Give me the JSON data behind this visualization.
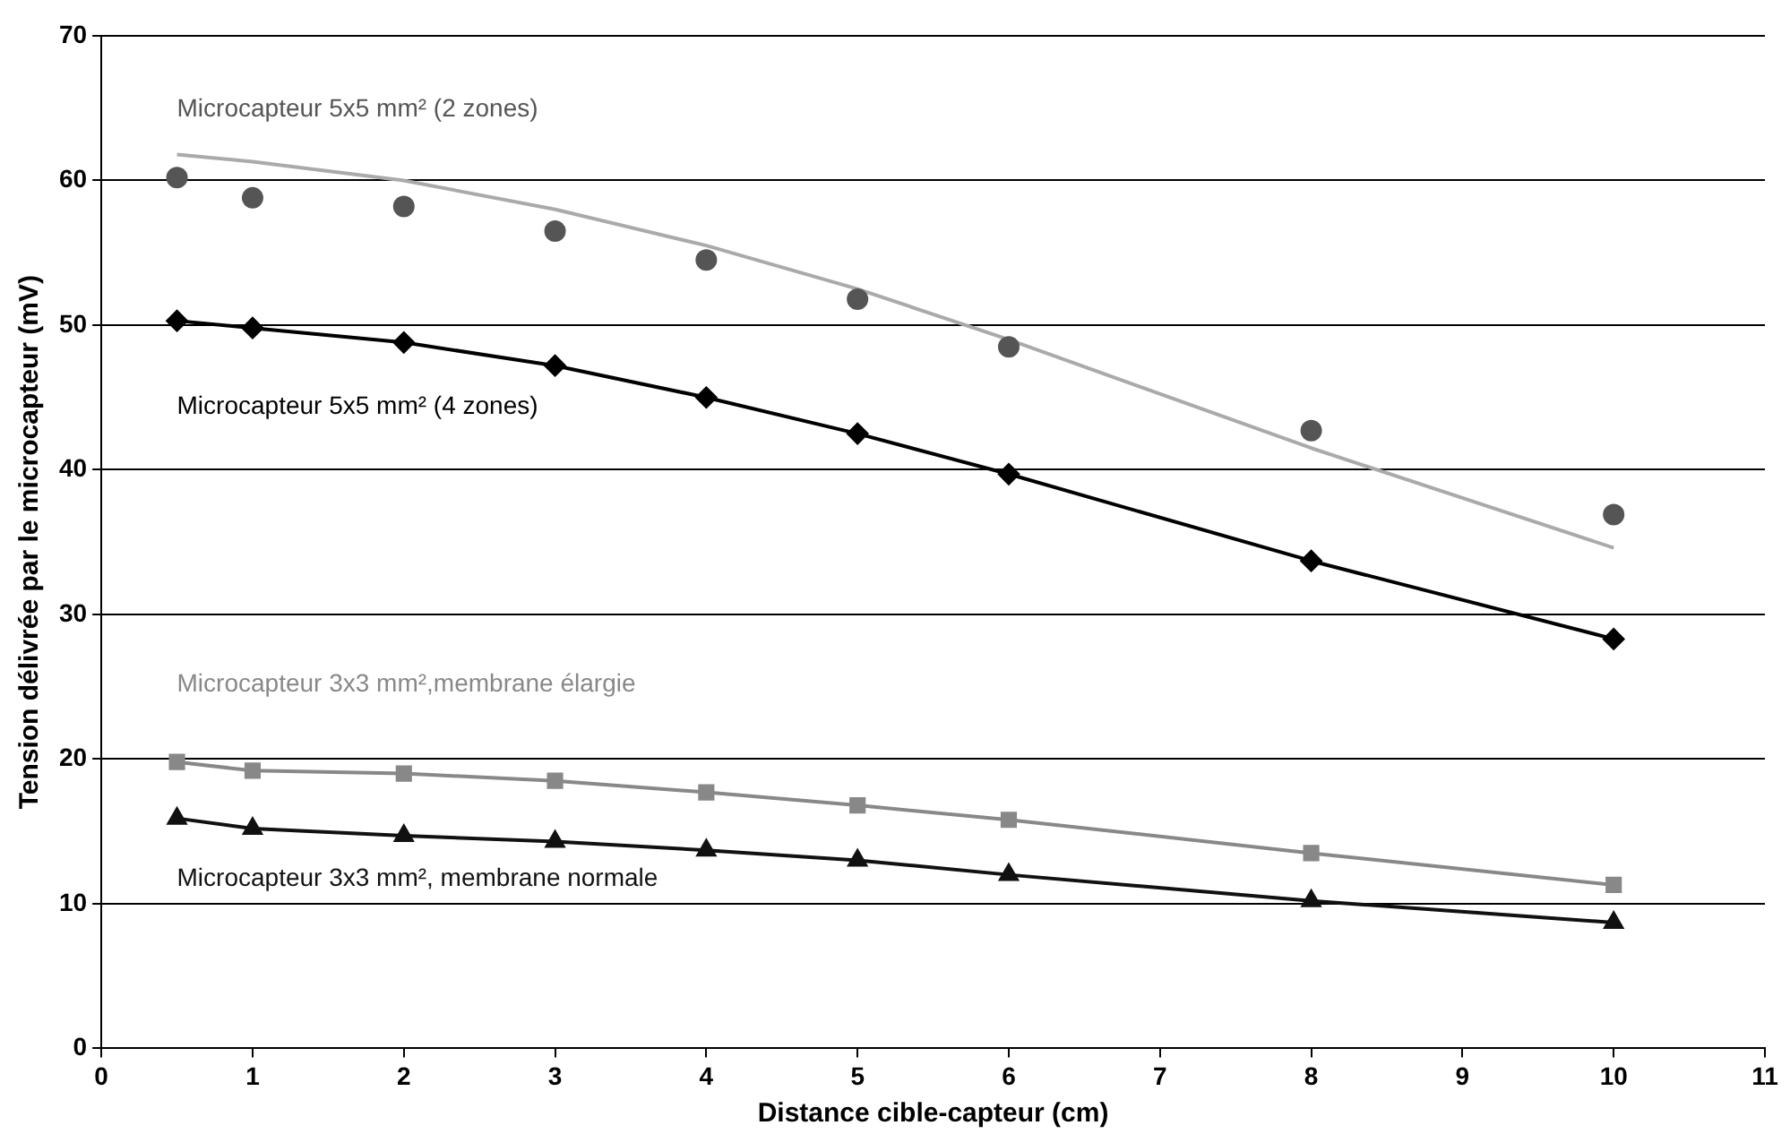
{
  "chart_data": {
    "type": "line",
    "xlabel": "Distance cible-capteur (cm)",
    "ylabel": "Tension délivrée par le microcapteur (mV)",
    "xlim": [
      0,
      11
    ],
    "xticks": [
      0,
      1,
      2,
      3,
      4,
      5,
      6,
      7,
      8,
      9,
      10,
      11
    ],
    "ylim": [
      0,
      70
    ],
    "yticks": [
      0,
      10,
      20,
      30,
      40,
      50,
      60,
      70
    ],
    "grid": "y",
    "legend": false,
    "x": [
      0.5,
      1,
      2,
      3,
      4,
      5,
      6,
      8,
      10
    ],
    "series": [
      {
        "name": "Microcapteur 5x5 mm² (2 zones)",
        "type": "scatter",
        "marker": "circle",
        "color": "#555555",
        "values": [
          60.2,
          58.8,
          58.2,
          56.5,
          54.5,
          51.8,
          48.5,
          42.7,
          36.9
        ]
      },
      {
        "type": "line",
        "marker": "none",
        "color": "#aaaaaa",
        "values": [
          61.8,
          61.3,
          60.0,
          58.0,
          55.5,
          52.5,
          49.0,
          41.5,
          34.6
        ]
      },
      {
        "name": "Microcapteur 5x5 mm² (4 zones)",
        "type": "line",
        "marker": "diamond",
        "color": "#000000",
        "values": [
          50.3,
          49.8,
          48.8,
          47.2,
          45.0,
          42.5,
          39.7,
          33.7,
          28.3
        ]
      },
      {
        "name": "Microcapteur 3x3 mm²,membrane élargie",
        "type": "line",
        "marker": "square",
        "color": "#888888",
        "values": [
          19.8,
          19.2,
          19.0,
          18.5,
          17.7,
          16.8,
          15.8,
          13.5,
          11.3
        ]
      },
      {
        "name": "Microcapteur 3x3 mm², membrane normale",
        "type": "line",
        "marker": "triangle",
        "color": "#111111",
        "values": [
          15.9,
          15.2,
          14.7,
          14.3,
          13.7,
          13.0,
          12.0,
          10.2,
          8.7
        ]
      }
    ]
  }
}
